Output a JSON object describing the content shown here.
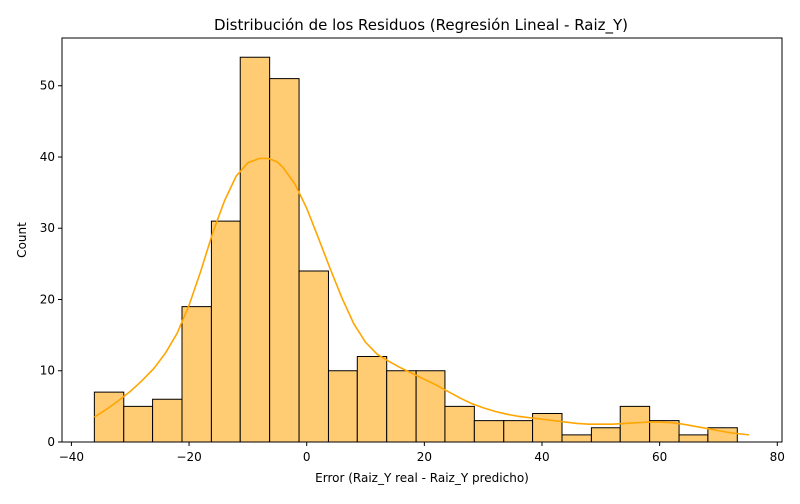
{
  "chart_data": {
    "type": "bar",
    "title": "Distribución de los Residuos (Regresión Lineal - Raiz_Y)",
    "xlabel": "Error (Raiz_Y real - Raiz_Y predicho)",
    "ylabel": "Count",
    "xlim": [
      -41.6,
      80.8
    ],
    "ylim": [
      0,
      56.7
    ],
    "xticks": [
      -40,
      -20,
      0,
      20,
      40,
      60,
      80
    ],
    "yticks": [
      0,
      10,
      20,
      30,
      40,
      50
    ],
    "grid": false,
    "bin_edges": [
      -36.1,
      -31.1,
      -26.2,
      -21.2,
      -16.2,
      -11.3,
      -6.3,
      -1.3,
      3.7,
      8.6,
      13.6,
      18.6,
      23.5,
      28.5,
      33.5,
      38.4,
      43.4,
      48.4,
      53.3,
      58.3,
      63.3,
      68.2,
      73.2
    ],
    "counts": [
      7,
      5,
      6,
      19,
      31,
      54,
      51,
      24,
      10,
      12,
      10,
      10,
      5,
      3,
      3,
      4,
      1,
      2,
      5,
      3,
      1,
      2
    ],
    "bar_color": "#FFCC74",
    "bar_edge_color": "#000000",
    "kde": {
      "color": "#FFA500",
      "x": [
        -36.1,
        -34,
        -32,
        -30,
        -28,
        -26,
        -24,
        -22,
        -20,
        -18,
        -16,
        -14,
        -12,
        -10,
        -8,
        -6.5,
        -5,
        -4,
        -2,
        0,
        2,
        4,
        6,
        8,
        10,
        12,
        14,
        16,
        18,
        20,
        22,
        24,
        26,
        28,
        30,
        32,
        34,
        36,
        38,
        40,
        42,
        44,
        46,
        48,
        50,
        52,
        54,
        56,
        58,
        60,
        62,
        64,
        66,
        68,
        70,
        72,
        75.2
      ],
      "y": [
        3.5,
        4.6,
        5.8,
        7.1,
        8.6,
        10.3,
        12.5,
        15.3,
        19.2,
        24,
        29.3,
        33.8,
        37.3,
        39.2,
        39.8,
        39.8,
        39.3,
        38.5,
        36.2,
        32.8,
        28.6,
        24.3,
        20.2,
        16.6,
        14,
        12.3,
        11.3,
        10.4,
        9.6,
        8.8,
        8,
        7.1,
        6.2,
        5.4,
        4.8,
        4.3,
        3.9,
        3.6,
        3.4,
        3.2,
        3,
        2.8,
        2.6,
        2.5,
        2.5,
        2.5,
        2.6,
        2.7,
        2.8,
        2.8,
        2.7,
        2.5,
        2.2,
        1.9,
        1.6,
        1.3,
        1
      ]
    }
  }
}
